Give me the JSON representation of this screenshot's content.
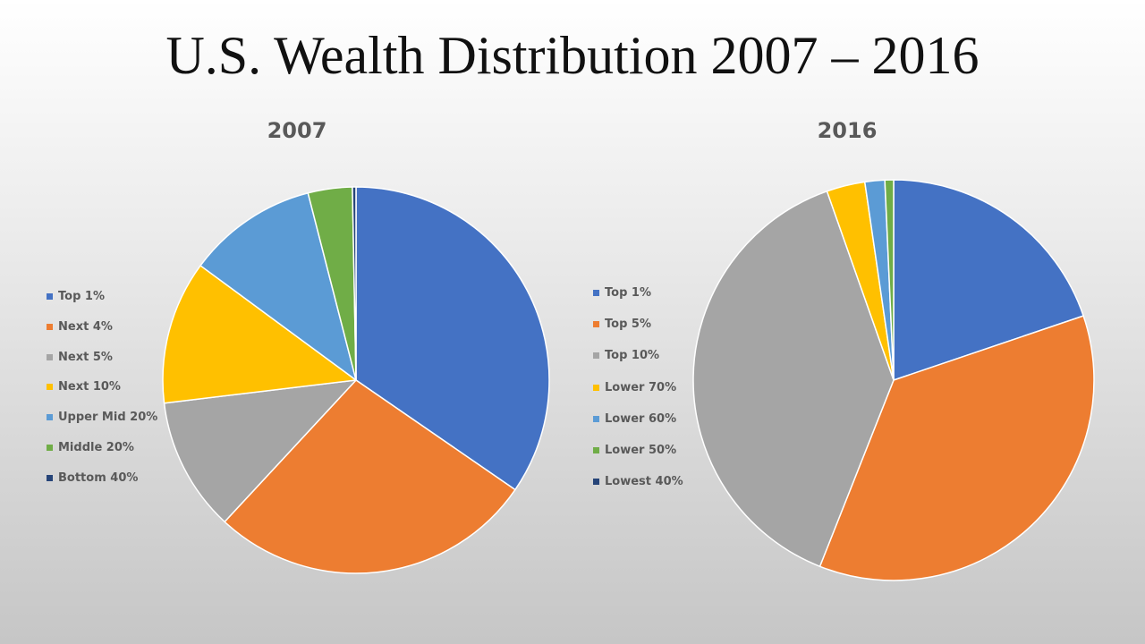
{
  "title": "U.S. Wealth Distribution 2007 – 2016",
  "chart_data": [
    {
      "type": "pie",
      "title": "2007",
      "legend_position": "left",
      "categories": [
        "Top 1%",
        "Next 4%",
        "Next 5%",
        "Next 10%",
        "Upper Mid 20%",
        "Middle 20%",
        "Bottom 40%"
      ],
      "values": [
        34.6,
        27.3,
        11.2,
        12.0,
        10.9,
        3.7,
        0.3
      ],
      "colors": [
        "#4472C4",
        "#ED7D31",
        "#A5A5A5",
        "#FFC000",
        "#5B9BD5",
        "#70AD47",
        "#264478"
      ]
    },
    {
      "type": "pie",
      "title": "2016",
      "legend_position": "left",
      "categories": [
        "Top 1%",
        "Top 5%",
        "Top 10%",
        "Lower 70%",
        "Lower 60%",
        "Lower 50%",
        "Lowest 40%"
      ],
      "values": [
        19.8,
        36.2,
        38.6,
        3.1,
        1.6,
        0.7,
        0.0
      ],
      "colors": [
        "#4472C4",
        "#ED7D31",
        "#A5A5A5",
        "#FFC000",
        "#5B9BD5",
        "#70AD47",
        "#264478"
      ]
    }
  ]
}
